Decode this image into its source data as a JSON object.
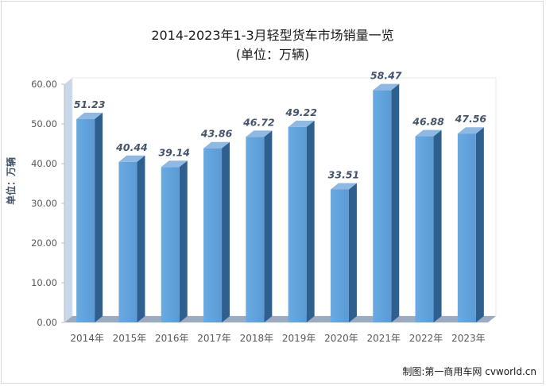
{
  "chart_data": {
    "type": "bar",
    "title": "2014-2023年1-3月轻型货车市场销量一览",
    "subtitle": "(单位：万辆)",
    "ylabel": "单位：万辆",
    "xlabel": "",
    "categories": [
      "2014年",
      "2015年",
      "2016年",
      "2017年",
      "2018年",
      "2019年",
      "2020年",
      "2021年",
      "2022年",
      "2023年"
    ],
    "values": [
      51.23,
      40.44,
      39.14,
      43.86,
      46.72,
      49.22,
      33.51,
      58.47,
      46.88,
      47.56
    ],
    "value_labels": [
      "51.23",
      "40.44",
      "39.14",
      "43.86",
      "46.72",
      "49.22",
      "33.51",
      "58.47",
      "46.88",
      "47.56"
    ],
    "ylim": [
      0,
      60
    ],
    "yticks": [
      0,
      10,
      20,
      30,
      40,
      50,
      60
    ],
    "ytick_labels": [
      "0.00",
      "10.00",
      "20.00",
      "30.00",
      "40.00",
      "50.00",
      "60.00"
    ],
    "grid": false,
    "legend": "none",
    "style": "3d-column",
    "colors": {
      "bar_front": "#5b9bd5",
      "bar_side": "#2e5f8f",
      "bar_top": "#8fb8e3",
      "wall": "#c9d7ea",
      "floor": "#9aabc2"
    }
  },
  "credit": "制图:第一商用车网 cvworld.cn"
}
